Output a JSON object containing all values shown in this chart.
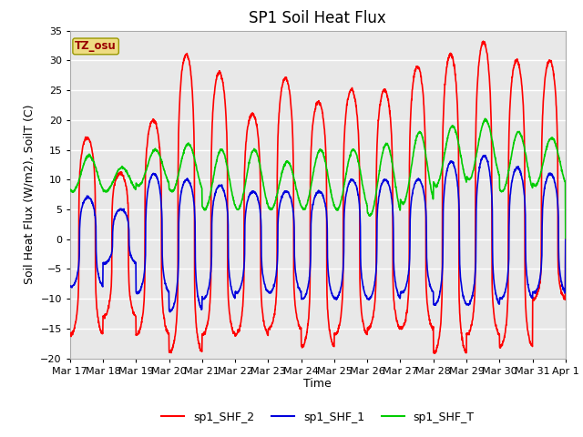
{
  "title": "SP1 Soil Heat Flux",
  "xlabel": "Time",
  "ylabel": "Soil Heat Flux (W/m2), SoilT (C)",
  "ylim": [
    -20,
    35
  ],
  "xlim": [
    0,
    15
  ],
  "x_tick_labels": [
    "Mar 17",
    "Mar 18",
    "Mar 19",
    "Mar 20",
    "Mar 21",
    "Mar 22",
    "Mar 23",
    "Mar 24",
    "Mar 25",
    "Mar 26",
    "Mar 27",
    "Mar 28",
    "Mar 29",
    "Mar 30",
    "Mar 31",
    "Apr 1"
  ],
  "yticks": [
    -20,
    -15,
    -10,
    -5,
    0,
    5,
    10,
    15,
    20,
    25,
    30,
    35
  ],
  "bg_color": "#ffffff",
  "plot_bg_color": "#e8e8e8",
  "grid_color": "#ffffff",
  "line_red": "#ff0000",
  "line_blue": "#0000dd",
  "line_green": "#00cc00",
  "legend_labels": [
    "sp1_SHF_2",
    "sp1_SHF_1",
    "sp1_SHF_T"
  ],
  "tz_label": "TZ_osu",
  "tz_bg": "#eedc82",
  "tz_fg": "#990000",
  "title_fontsize": 12,
  "axis_fontsize": 9,
  "tick_fontsize": 8,
  "legend_fontsize": 9,
  "linewidth": 1.2
}
